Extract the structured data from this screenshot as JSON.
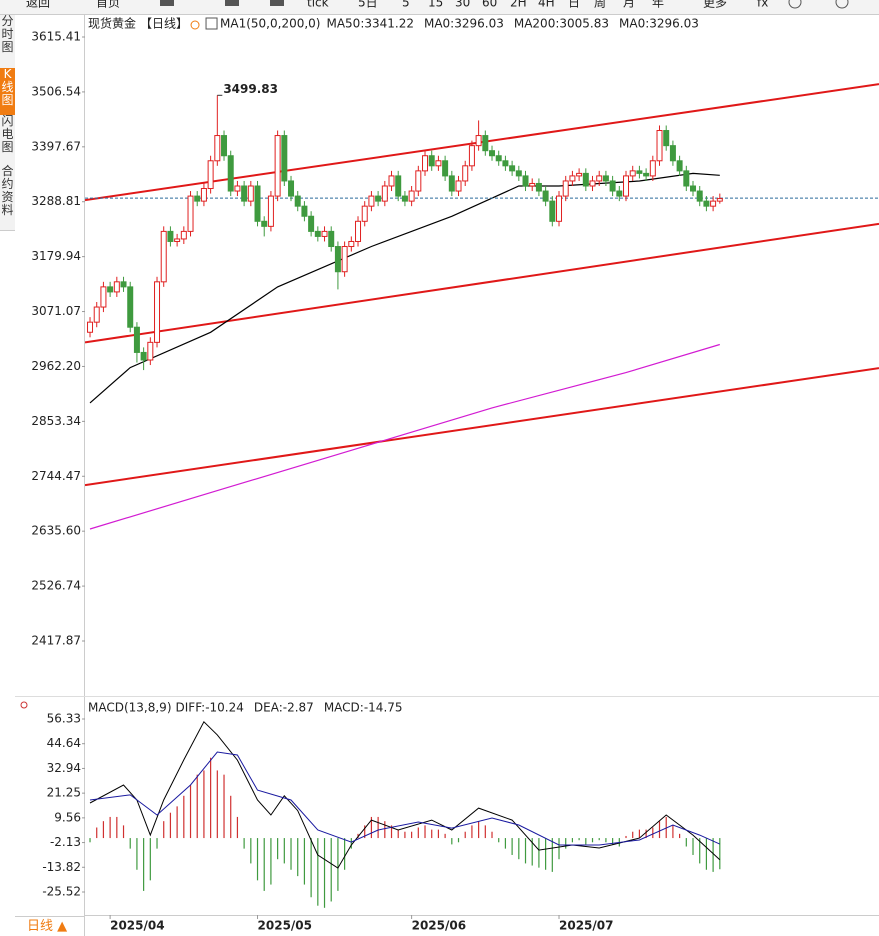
{
  "toolbar": [
    "返回",
    "首页",
    "tick",
    "5日",
    "5",
    "15",
    "30",
    "60",
    "2H",
    "4H",
    "日",
    "周",
    "月",
    "年",
    "更多",
    "fx"
  ],
  "sidebar": [
    "分时图",
    "K线图",
    "闪电图",
    "合约资料"
  ],
  "period_button": "日线 ▲",
  "chart_data": [
    {
      "type": "candlestick",
      "title": "现货黄金",
      "period": "【日线】",
      "indicator": "MA1(50,0,200,0)",
      "xlim": [
        -0.75,
        117.76
      ],
      "ylim": [
        2310.8,
        3659.03
      ],
      "yticks": [
        3615.41,
        3506.54,
        3397.67,
        3288.81,
        3179.94,
        3071.07,
        {
          "value": 2962.2,
          "label": "2962.20"
        },
        2853.34,
        2744.47,
        {
          "value": 2635.6,
          "label": "2635.60"
        },
        2526.74,
        2417.87
      ],
      "up_color": "#e02020",
      "down_color": "#3f9a3f",
      "open": [
        3030,
        3050,
        3080,
        3120,
        3110,
        3130,
        3120,
        3040,
        2990,
        2975,
        3010,
        3130,
        3230,
        3210,
        3215,
        3230,
        3300,
        3290,
        3315,
        3370,
        3420,
        3380,
        3310,
        3320,
        3290,
        3320,
        3250,
        3240,
        3300,
        3420,
        3330,
        3300,
        3280,
        3260,
        3230,
        3220,
        3230,
        3200,
        3150,
        3200,
        3210,
        3250,
        3280,
        3300,
        3290,
        3320,
        3340,
        3300,
        3290,
        3310,
        3350,
        3380,
        3360,
        3370,
        3340,
        3310,
        3330,
        3360,
        3400,
        3420,
        3390,
        3380,
        3370,
        3360,
        3350,
        3340,
        3320,
        3325,
        3310,
        3290,
        3250,
        3300,
        3330,
        3340,
        3345,
        3320,
        3330,
        3340,
        3330,
        3310,
        3300,
        3340,
        3350,
        3345,
        3340,
        3370,
        3430,
        3400,
        3370,
        3350,
        3320,
        3310,
        3290,
        3280,
        3290
      ],
      "high": [
        3060,
        3090,
        3130,
        3130,
        3140,
        3140,
        3130,
        3050,
        3000,
        3020,
        3140,
        3240,
        3240,
        3225,
        3240,
        3310,
        3310,
        3325,
        3380,
        3499.83,
        3430,
        3390,
        3330,
        3330,
        3330,
        3330,
        3260,
        3310,
        3430,
        3430,
        3340,
        3310,
        3290,
        3270,
        3240,
        3240,
        3240,
        3210,
        3210,
        3220,
        3260,
        3290,
        3310,
        3310,
        3330,
        3350,
        3350,
        3310,
        3320,
        3360,
        3390,
        3390,
        3380,
        3380,
        3350,
        3340,
        3370,
        3410,
        3450,
        3430,
        3400,
        3390,
        3380,
        3370,
        3360,
        3350,
        3335,
        3335,
        3320,
        3300,
        3310,
        3340,
        3350,
        3355,
        3355,
        3340,
        3350,
        3350,
        3340,
        3320,
        3350,
        3360,
        3360,
        3355,
        3380,
        3440,
        3440,
        3410,
        3380,
        3360,
        3330,
        3320,
        3300,
        3300,
        3305
      ],
      "low": [
        3020,
        3040,
        3070,
        3100,
        3100,
        3110,
        3030,
        2970,
        2955,
        2965,
        3000,
        3120,
        3200,
        3200,
        3205,
        3220,
        3280,
        3280,
        3305,
        3360,
        3370,
        3300,
        3300,
        3280,
        3280,
        3240,
        3220,
        3230,
        3290,
        3320,
        3290,
        3270,
        3250,
        3220,
        3210,
        3210,
        3190,
        3115,
        3140,
        3190,
        3200,
        3240,
        3270,
        3280,
        3280,
        3310,
        3290,
        3280,
        3280,
        3300,
        3340,
        3350,
        3350,
        3330,
        3300,
        3300,
        3320,
        3350,
        3390,
        3380,
        3370,
        3360,
        3350,
        3340,
        3330,
        3310,
        3310,
        3300,
        3280,
        3240,
        3240,
        3290,
        3320,
        3330,
        3310,
        3310,
        3320,
        3320,
        3300,
        3290,
        3290,
        3330,
        3335,
        3330,
        3330,
        3360,
        3390,
        3360,
        3340,
        3310,
        3300,
        3280,
        3270,
        3270,
        3285
      ],
      "close": [
        3050,
        3080,
        3120,
        3110,
        3130,
        3120,
        3040,
        2990,
        2975,
        3010,
        3130,
        3230,
        3210,
        3215,
        3230,
        3300,
        3290,
        3315,
        3370,
        3420,
        3380,
        3310,
        3320,
        3290,
        3320,
        3250,
        3240,
        3300,
        3420,
        3330,
        3300,
        3280,
        3260,
        3230,
        3220,
        3230,
        3200,
        3150,
        3200,
        3210,
        3250,
        3280,
        3300,
        3290,
        3320,
        3340,
        3300,
        3290,
        3310,
        3350,
        3380,
        3360,
        3370,
        3340,
        3310,
        3330,
        3360,
        3400,
        3420,
        3390,
        3380,
        3370,
        3360,
        3350,
        3340,
        3320,
        3325,
        3310,
        3290,
        3250,
        3300,
        3330,
        3340,
        3345,
        3320,
        3330,
        3340,
        3330,
        3310,
        3300,
        3340,
        3350,
        3345,
        3340,
        3370,
        3430,
        3400,
        3370,
        3350,
        3320,
        3310,
        3290,
        3280,
        3290,
        3295
      ],
      "series": [
        {
          "name": "MA50:3341.22",
          "color": "#000000",
          "x": [
            0,
            6,
            18,
            28,
            42,
            54,
            64,
            70,
            82,
            90,
            94
          ],
          "values": [
            2890,
            2960,
            3030,
            3120,
            3200,
            3260,
            3320,
            3320,
            3330,
            3345,
            3341.22
          ]
        },
        {
          "name": "MA0:3296.03",
          "color": "#1a2a8c",
          "level": 3296.03
        },
        {
          "name": "MA200:3005.83",
          "color": "#d21bd2",
          "x": [
            0,
            20,
            40,
            60,
            80,
            94
          ],
          "values": [
            2640,
            2720,
            2800,
            2880,
            2950,
            3005.83
          ]
        },
        {
          "name": "MA0:3296.03",
          "color": "#e8891c"
        }
      ],
      "trendlines": [
        {
          "color": "#e01818",
          "x": [
            -0.75,
            117.76
          ],
          "values": [
            3292,
            3522
          ]
        },
        {
          "color": "#e01818",
          "x": [
            -0.75,
            117.76
          ],
          "values": [
            3010,
            3245
          ]
        },
        {
          "color": "#e01818",
          "x": [
            -0.75,
            117.76
          ],
          "values": [
            2727,
            2959
          ]
        }
      ],
      "annotations": [
        {
          "text": "3499.83",
          "x": 19,
          "y": 3499.83,
          "color": "#d04040"
        }
      ]
    },
    {
      "type": "macd",
      "title": "MACD(13,8,9)",
      "xlim": [
        -0.75,
        117.76
      ],
      "ylim": [
        -36.4,
        66.74
      ],
      "yticks": [
        56.33,
        44.64,
        32.94,
        21.25,
        9.56,
        -2.13,
        -13.82,
        -25.52
      ],
      "xticks": [
        {
          "value": 3,
          "label": "2025/04"
        },
        {
          "value": 25,
          "label": "2025/05"
        },
        {
          "value": 48,
          "label": "2025/06"
        },
        {
          "value": 70,
          "label": "2025/07"
        }
      ],
      "series": [
        {
          "name": "DIFF:-10.24",
          "color": "#000000",
          "x": [
            0,
            5,
            7,
            9,
            11,
            14,
            17,
            19,
            22,
            25,
            27,
            29,
            31,
            34,
            37,
            39,
            42,
            46,
            51,
            54,
            58,
            63,
            67,
            72,
            76,
            82,
            86,
            90,
            94
          ],
          "values": [
            16.6,
            25.1,
            18,
            1.4,
            18,
            37,
            55,
            48.8,
            36.9,
            18,
            10.9,
            20,
            13,
            -8,
            -14.2,
            -3.3,
            8.5,
            3.8,
            8.5,
            3.8,
            14.2,
            8.5,
            -5.7,
            -3.3,
            -4.7,
            0,
            10.9,
            1.4,
            -10.24
          ]
        },
        {
          "name": "DEA:-2.87",
          "color": "#1a1aa0",
          "x": [
            0,
            6,
            10,
            15,
            19,
            22,
            25,
            30,
            34,
            39,
            43,
            49,
            54,
            60,
            64,
            70,
            76,
            82,
            87,
            91,
            94
          ],
          "values": [
            18,
            20.4,
            10.9,
            25.1,
            40.7,
            39.3,
            22.7,
            18,
            3.8,
            -1.9,
            3.8,
            7.6,
            4.7,
            9.5,
            6.2,
            -3.3,
            -3.3,
            -0.9,
            6.2,
            1.4,
            -2.87
          ]
        },
        {
          "name": "MACD:-14.75",
          "color": "#d21bd2",
          "histogram": true,
          "pos_color": "#d03030",
          "neg_color": "#3f9a3f",
          "values": [
            -2,
            5,
            8,
            10,
            10,
            6,
            -5,
            -15,
            -25,
            -20,
            -5,
            8,
            12,
            15,
            20,
            25,
            30,
            32,
            38,
            32,
            30,
            20,
            10,
            -5,
            -12,
            -20,
            -25,
            -22,
            -10,
            -12,
            -15,
            -18,
            -22,
            -28,
            -32,
            -33,
            -30,
            -25,
            -15,
            -5,
            2,
            6,
            10,
            10,
            8,
            6,
            4,
            3,
            3,
            5,
            6,
            4,
            4,
            2,
            -3,
            -2,
            3,
            6,
            8,
            6,
            3,
            -2,
            -5,
            -8,
            -10,
            -12,
            -13,
            -14,
            -15,
            -16,
            -10,
            -5,
            -2,
            -1,
            -3,
            -2,
            -1,
            -2,
            -3,
            -4,
            1,
            3,
            4,
            4,
            5,
            8,
            10,
            6,
            2,
            -4,
            -8,
            -12,
            -15,
            -16,
            -14.75
          ]
        }
      ]
    }
  ]
}
